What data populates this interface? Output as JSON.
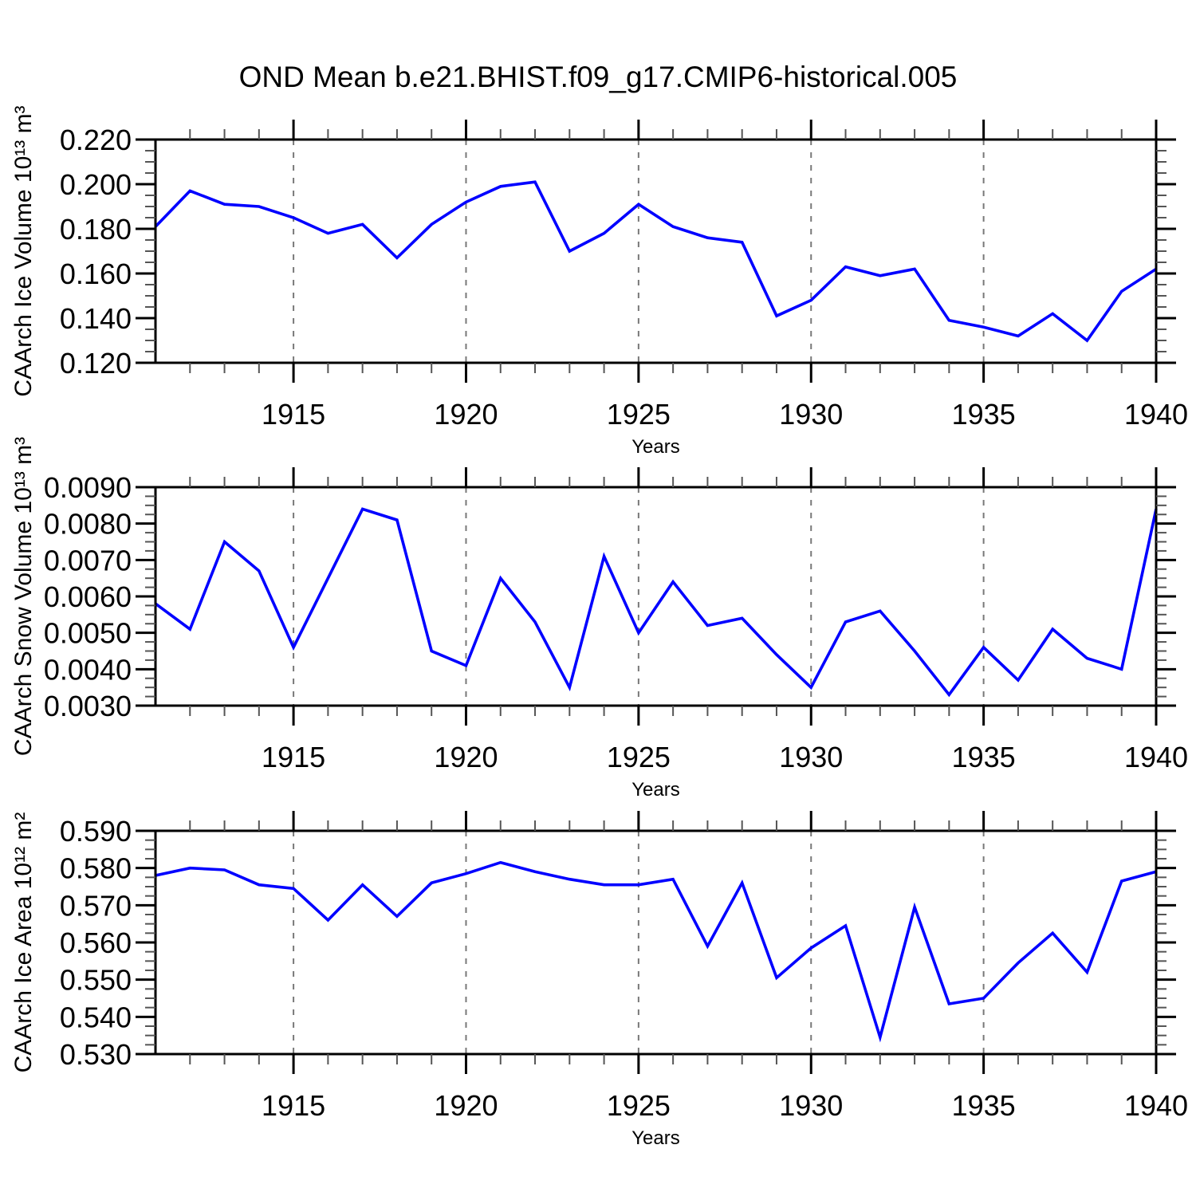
{
  "title": "OND Mean b.e21.BHIST.f09_g17.CMIP6-historical.005",
  "style": {
    "line_color": "#0000ff",
    "grid_color": "#787878",
    "axis_color": "#000000",
    "minor_tick_color": "#555555",
    "background": "#ffffff"
  },
  "chart_data": [
    {
      "type": "line",
      "name": "ice-volume",
      "ylabel": "CAArch Ice Volume 10¹³ m³",
      "xlabel": "Years",
      "legend": "none",
      "grid": "vertical-dashed-at-major-xticks",
      "xlim": [
        1911,
        1940
      ],
      "xticks": [
        1915,
        1920,
        1925,
        1930,
        1935,
        1940
      ],
      "xminor_step": 1,
      "ylim": [
        0.12,
        0.22
      ],
      "ytick_step": 0.02,
      "yminor_step": 0.005,
      "ydecimals": 3,
      "x": [
        1911,
        1912,
        1913,
        1914,
        1915,
        1916,
        1917,
        1918,
        1919,
        1920,
        1921,
        1922,
        1923,
        1924,
        1925,
        1926,
        1927,
        1928,
        1929,
        1930,
        1931,
        1932,
        1933,
        1934,
        1935,
        1936,
        1937,
        1938,
        1939,
        1940
      ],
      "y": [
        0.181,
        0.197,
        0.191,
        0.19,
        0.185,
        0.178,
        0.182,
        0.167,
        0.182,
        0.192,
        0.199,
        0.201,
        0.17,
        0.178,
        0.191,
        0.181,
        0.176,
        0.174,
        0.141,
        0.148,
        0.163,
        0.159,
        0.162,
        0.139,
        0.136,
        0.132,
        0.142,
        0.13,
        0.152,
        0.162
      ]
    },
    {
      "type": "line",
      "name": "snow-volume",
      "ylabel": "CAArch Snow Volume 10¹³ m³",
      "xlabel": "Years",
      "legend": "none",
      "grid": "vertical-dashed-at-major-xticks",
      "xlim": [
        1911,
        1940
      ],
      "xticks": [
        1915,
        1920,
        1925,
        1930,
        1935,
        1940
      ],
      "xminor_step": 1,
      "ylim": [
        0.003,
        0.009
      ],
      "ytick_step": 0.001,
      "yminor_step": 0.00025,
      "ydecimals": 4,
      "x": [
        1911,
        1912,
        1913,
        1914,
        1915,
        1916,
        1917,
        1918,
        1919,
        1920,
        1921,
        1922,
        1923,
        1924,
        1925,
        1926,
        1927,
        1928,
        1929,
        1930,
        1931,
        1932,
        1933,
        1934,
        1935,
        1936,
        1937,
        1938,
        1939,
        1940
      ],
      "y": [
        0.0058,
        0.0051,
        0.0075,
        0.0067,
        0.0046,
        0.0065,
        0.0084,
        0.0081,
        0.0045,
        0.0041,
        0.0065,
        0.0053,
        0.0035,
        0.0071,
        0.005,
        0.0064,
        0.0052,
        0.0054,
        0.0044,
        0.0035,
        0.0053,
        0.0056,
        0.0045,
        0.0033,
        0.0046,
        0.0037,
        0.0051,
        0.0043,
        0.004,
        0.0084
      ]
    },
    {
      "type": "line",
      "name": "ice-area",
      "ylabel": "CAArch Ice Area 10¹² m²",
      "xlabel": "Years",
      "legend": "none",
      "grid": "vertical-dashed-at-major-xticks",
      "xlim": [
        1911,
        1940
      ],
      "xticks": [
        1915,
        1920,
        1925,
        1930,
        1935,
        1940
      ],
      "xminor_step": 1,
      "ylim": [
        0.53,
        0.59
      ],
      "ytick_step": 0.01,
      "yminor_step": 0.0025,
      "ydecimals": 3,
      "x": [
        1911,
        1912,
        1913,
        1914,
        1915,
        1916,
        1917,
        1918,
        1919,
        1920,
        1921,
        1922,
        1923,
        1924,
        1925,
        1926,
        1927,
        1928,
        1929,
        1930,
        1931,
        1932,
        1933,
        1934,
        1935,
        1936,
        1937,
        1938,
        1939,
        1940
      ],
      "y": [
        0.578,
        0.58,
        0.5795,
        0.5755,
        0.5745,
        0.566,
        0.5755,
        0.567,
        0.576,
        0.5785,
        0.5815,
        0.579,
        0.577,
        0.5755,
        0.5755,
        0.577,
        0.559,
        0.576,
        0.5505,
        0.5585,
        0.5645,
        0.5345,
        0.5695,
        0.5435,
        0.545,
        0.5545,
        0.5625,
        0.552,
        0.5765,
        0.579
      ]
    }
  ]
}
